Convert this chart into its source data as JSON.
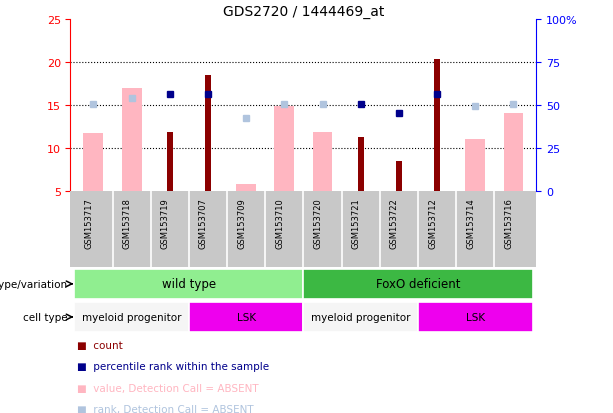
{
  "title": "GDS2720 / 1444469_at",
  "samples": [
    "GSM153717",
    "GSM153718",
    "GSM153719",
    "GSM153707",
    "GSM153709",
    "GSM153710",
    "GSM153720",
    "GSM153721",
    "GSM153722",
    "GSM153712",
    "GSM153714",
    "GSM153716"
  ],
  "red_bars": [
    null,
    null,
    11.8,
    18.5,
    null,
    null,
    null,
    11.2,
    8.5,
    20.3,
    null,
    null
  ],
  "pink_bars": [
    11.7,
    17.0,
    null,
    null,
    5.8,
    14.8,
    11.8,
    null,
    null,
    null,
    11.0,
    14.0
  ],
  "blue_squares": [
    null,
    null,
    16.3,
    16.2,
    null,
    null,
    null,
    15.1,
    14.1,
    16.3,
    null,
    null
  ],
  "lightblue_squares": [
    15.1,
    15.8,
    null,
    null,
    13.5,
    15.1,
    15.1,
    null,
    null,
    null,
    14.8,
    15.1
  ],
  "ylim_left": [
    5,
    25
  ],
  "yticks_left": [
    5,
    10,
    15,
    20,
    25
  ],
  "ylim_right": [
    0,
    100
  ],
  "yticks_right": [
    0,
    25,
    50,
    75,
    100
  ],
  "ytick_labels_right": [
    "0",
    "25",
    "50",
    "75",
    "100%"
  ],
  "grid_lines": [
    10,
    15,
    20
  ],
  "genotype_groups": [
    {
      "label": "wild type",
      "start": 0,
      "end": 6,
      "color": "#90EE90"
    },
    {
      "label": "FoxO deficient",
      "start": 6,
      "end": 12,
      "color": "#3CB843"
    }
  ],
  "cell_groups": [
    {
      "label": "myeloid progenitor",
      "start": 0,
      "end": 3,
      "color": "#F5F5F5"
    },
    {
      "label": "LSK",
      "start": 3,
      "end": 6,
      "color": "#EE00EE"
    },
    {
      "label": "myeloid progenitor",
      "start": 6,
      "end": 9,
      "color": "#F5F5F5"
    },
    {
      "label": "LSK",
      "start": 9,
      "end": 12,
      "color": "#EE00EE"
    }
  ],
  "legend_items": [
    {
      "label": "count",
      "color": "#8B0000"
    },
    {
      "label": "percentile rank within the sample",
      "color": "#00008B"
    },
    {
      "label": "value, Detection Call = ABSENT",
      "color": "#FFB6C1"
    },
    {
      "label": "rank, Detection Call = ABSENT",
      "color": "#B0C4DE"
    }
  ],
  "red_color": "#8B0000",
  "pink_color": "#FFB6C1",
  "blue_color": "#00008B",
  "lightblue_color": "#B0C4DE",
  "bg_color": "#FFFFFF",
  "sample_bg": "#C8C8C8",
  "pink_bar_width": 0.52,
  "red_bar_width": 0.16
}
